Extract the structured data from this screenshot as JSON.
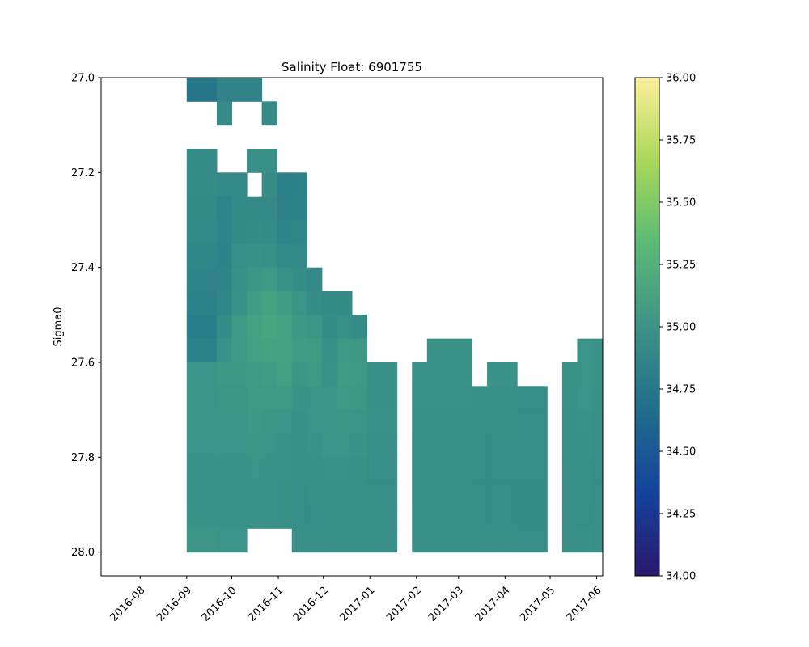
{
  "chart_data": {
    "type": "heatmap",
    "title": "Salinity Float: 6901755",
    "xlabel": "",
    "ylabel": "Sigma0",
    "x_ticks": [
      "2016-08",
      "2016-09",
      "2016-10",
      "2016-11",
      "2016-12",
      "2017-01",
      "2017-02",
      "2017-03",
      "2017-04",
      "2017-05",
      "2017-06"
    ],
    "y_ticks": [
      "27.0",
      "27.2",
      "27.4",
      "27.6",
      "27.8",
      "28.0"
    ],
    "ylim": [
      28.05,
      27.0
    ],
    "xlim": [
      "2016-07-06",
      "2017-06-05"
    ],
    "colorbar": {
      "min": 34.0,
      "max": 36.0,
      "ticks": [
        "34.00",
        "34.25",
        "34.50",
        "34.75",
        "35.00",
        "35.25",
        "35.50",
        "35.75",
        "36.00"
      ],
      "colormap": "haline",
      "stops": [
        "#2a186c",
        "#14439c",
        "#206e8b",
        "#3c9387",
        "#5aba75",
        "#a9d85b",
        "#fdef9a"
      ]
    },
    "y_bin_size": 0.05,
    "columns": [
      {
        "date": "2016-09-01",
        "values": [
          34.74,
          null,
          null,
          34.94,
          34.93,
          34.92,
          34.9,
          34.88,
          34.86,
          34.84,
          34.8,
          34.85,
          35.0,
          35.01,
          35.01,
          35.0,
          34.99,
          34.98,
          34.99,
          35.02
        ]
      },
      {
        "date": "2016-09-21",
        "values": [
          34.86,
          34.93,
          null,
          null,
          34.92,
          34.86,
          34.86,
          34.85,
          34.86,
          34.88,
          34.93,
          34.98,
          35.03,
          35.02,
          35.01,
          35.0,
          34.99,
          34.98,
          34.98,
          35.0
        ]
      },
      {
        "date": "2016-10-01",
        "values": [
          34.86,
          null,
          null,
          null,
          34.91,
          34.92,
          34.92,
          34.95,
          34.97,
          34.99,
          35.05,
          35.05,
          35.03,
          35.02,
          35.01,
          35.0,
          34.99,
          34.98,
          34.98,
          35.0
        ]
      },
      {
        "date": "2016-10-11",
        "values": [
          34.86,
          null,
          null,
          34.96,
          null,
          34.92,
          34.94,
          34.97,
          35.02,
          35.08,
          35.12,
          35.1,
          35.05,
          35.04,
          35.03,
          35.02,
          35.0,
          34.99,
          34.99,
          null
        ]
      },
      {
        "date": "2016-10-21",
        "values": [
          null,
          34.93,
          null,
          34.97,
          34.94,
          34.92,
          34.93,
          34.96,
          35.04,
          35.12,
          35.15,
          35.12,
          35.07,
          35.05,
          35.02,
          35.0,
          34.99,
          34.98,
          34.98,
          null
        ]
      },
      {
        "date": "2016-10-31",
        "values": [
          null,
          null,
          null,
          null,
          34.82,
          34.84,
          34.86,
          34.9,
          34.98,
          35.08,
          35.12,
          35.11,
          35.1,
          35.05,
          35.0,
          34.99,
          34.98,
          34.97,
          34.97,
          null
        ]
      },
      {
        "date": "2016-11-10",
        "values": [
          null,
          null,
          null,
          null,
          34.84,
          34.85,
          34.88,
          34.9,
          34.94,
          35.0,
          35.03,
          35.07,
          35.02,
          34.99,
          34.97,
          34.97,
          34.96,
          34.95,
          34.95,
          34.96
        ]
      },
      {
        "date": "2016-11-20",
        "values": [
          null,
          null,
          null,
          null,
          null,
          null,
          null,
          null,
          34.9,
          34.94,
          35.02,
          35.06,
          35.04,
          35.01,
          35.0,
          34.98,
          34.97,
          34.96,
          34.95,
          34.96
        ]
      },
      {
        "date": "2016-11-30",
        "values": [
          null,
          null,
          null,
          null,
          null,
          null,
          null,
          null,
          null,
          34.92,
          34.94,
          34.97,
          34.98,
          35.01,
          35.01,
          35.0,
          34.98,
          34.97,
          34.96,
          34.96
        ]
      },
      {
        "date": "2016-12-10",
        "values": [
          null,
          null,
          null,
          null,
          null,
          null,
          null,
          null,
          null,
          34.92,
          34.96,
          35.05,
          35.06,
          35.04,
          35.02,
          35.0,
          34.98,
          34.97,
          34.97,
          34.97
        ]
      },
      {
        "date": "2016-12-20",
        "values": [
          null,
          null,
          null,
          null,
          null,
          null,
          null,
          null,
          null,
          null,
          34.94,
          35.03,
          35.05,
          35.03,
          35.01,
          34.99,
          34.97,
          34.96,
          34.97,
          34.97
        ]
      },
      {
        "date": "2016-12-30",
        "values": [
          null,
          null,
          null,
          null,
          null,
          null,
          null,
          null,
          null,
          null,
          null,
          null,
          34.97,
          34.97,
          34.98,
          34.96,
          34.95,
          34.95,
          34.96,
          34.96
        ]
      },
      {
        "date": "2017-01-29",
        "values": [
          null,
          null,
          null,
          null,
          null,
          null,
          null,
          null,
          null,
          null,
          null,
          null,
          34.99,
          34.98,
          34.97,
          34.96,
          34.96,
          34.96,
          34.97,
          34.97
        ]
      },
      {
        "date": "2017-02-08",
        "values": [
          null,
          null,
          null,
          null,
          null,
          null,
          null,
          null,
          null,
          null,
          null,
          34.99,
          34.99,
          34.98,
          34.97,
          34.97,
          34.96,
          34.96,
          34.97,
          34.97
        ]
      },
      {
        "date": "2017-02-28",
        "values": [
          null,
          null,
          null,
          null,
          null,
          null,
          null,
          null,
          null,
          null,
          null,
          34.99,
          34.99,
          34.98,
          34.97,
          34.96,
          34.96,
          34.96,
          34.96,
          34.97
        ]
      },
      {
        "date": "2017-03-10",
        "values": [
          null,
          null,
          null,
          null,
          null,
          null,
          null,
          null,
          null,
          null,
          null,
          null,
          null,
          34.96,
          34.96,
          34.95,
          34.95,
          34.95,
          34.95,
          34.96
        ]
      },
      {
        "date": "2017-03-20",
        "values": [
          null,
          null,
          null,
          null,
          null,
          null,
          null,
          null,
          null,
          null,
          null,
          null,
          34.99,
          34.97,
          34.96,
          34.95,
          34.95,
          34.95,
          34.95,
          34.96
        ]
      },
      {
        "date": "2017-04-09",
        "values": [
          null,
          null,
          null,
          null,
          null,
          null,
          null,
          null,
          null,
          null,
          null,
          null,
          null,
          34.95,
          34.95,
          34.95,
          34.95,
          34.94,
          34.94,
          34.95
        ]
      },
      {
        "date": "2017-05-09",
        "values": [
          null,
          null,
          null,
          null,
          null,
          null,
          null,
          null,
          null,
          null,
          null,
          null,
          34.99,
          34.98,
          34.97,
          34.97,
          34.96,
          34.96,
          34.96,
          34.96
        ]
      },
      {
        "date": "2017-05-19",
        "values": [
          null,
          null,
          null,
          null,
          null,
          null,
          null,
          null,
          null,
          null,
          null,
          35.0,
          35.01,
          35.0,
          34.98,
          34.97,
          34.96,
          34.96,
          34.95,
          34.97
        ]
      },
      {
        "date": "2017-05-29",
        "values": [
          null,
          null,
          null,
          null,
          null,
          null,
          null,
          null,
          null,
          null,
          null,
          34.98,
          34.98,
          34.97,
          34.96,
          34.96,
          34.95,
          34.95,
          34.96,
          34.96
        ]
      }
    ]
  }
}
